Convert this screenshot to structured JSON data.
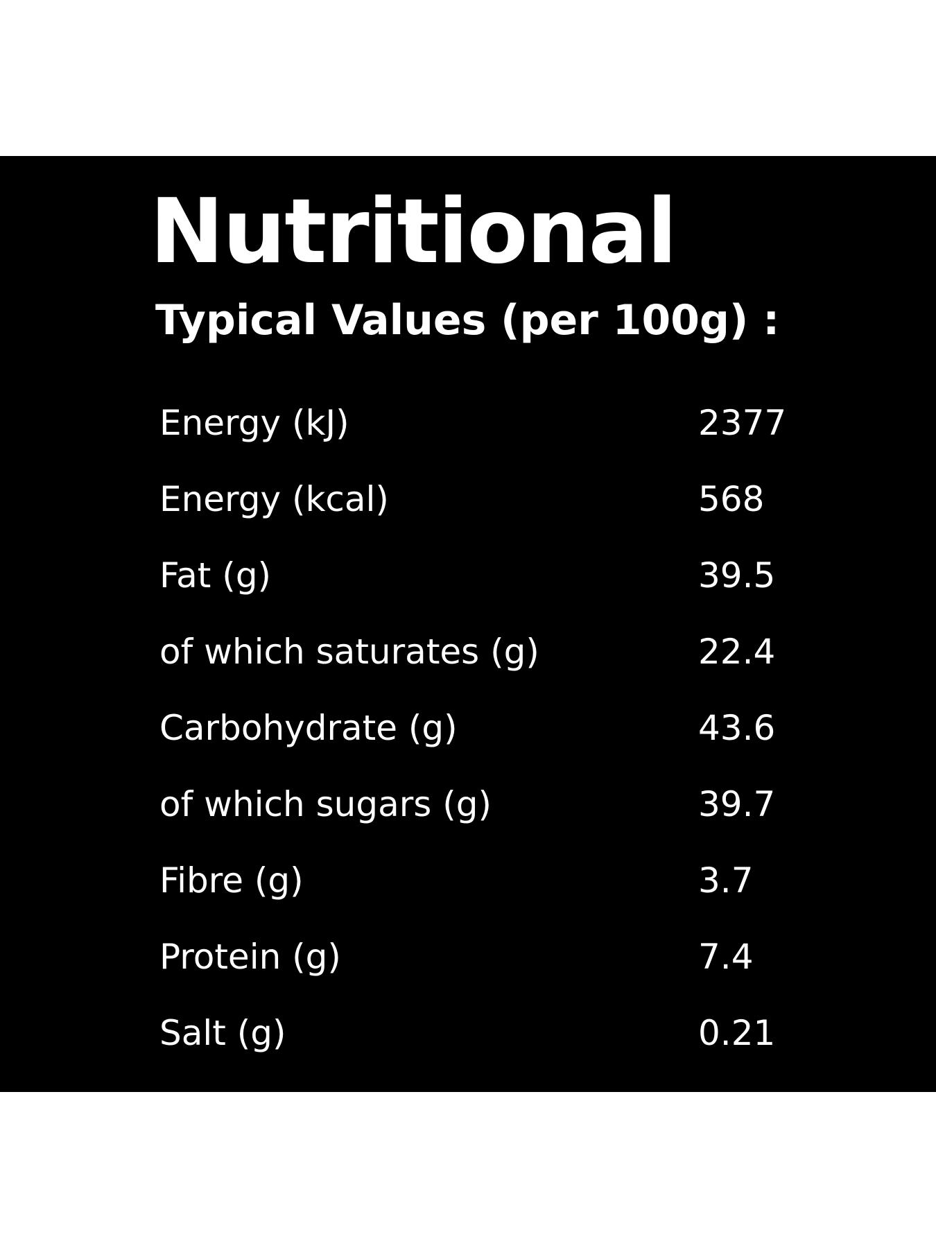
{
  "title": "Nutritional",
  "subtitle": "Typical Values (per 100g) :",
  "table": {
    "rows": [
      [
        "Energy (kJ)",
        "2377"
      ],
      [
        "Energy (kcal)",
        "568"
      ],
      [
        "Fat (g)",
        "39.5"
      ],
      [
        "of which saturates (g)",
        "22.4"
      ],
      [
        "Carbohydrate (g)",
        "43.6"
      ],
      [
        "of which sugars (g)",
        "39.7"
      ],
      [
        "Fibre (g)",
        "3.7"
      ],
      [
        "Protein (g)",
        "7.4"
      ],
      [
        "Salt (g)",
        "0.21"
      ]
    ]
  }
}
